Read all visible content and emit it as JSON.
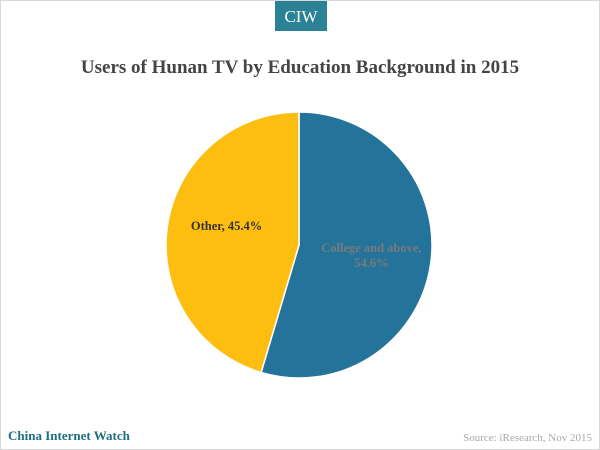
{
  "chart_data": {
    "type": "pie",
    "badge": "CIW",
    "title": "Users of Hunan TV by Education Background in 2015",
    "values": [
      54.6,
      45.4
    ],
    "value_labels": [
      "College and above, 54.6%",
      "Other, 45.4%"
    ],
    "colors": [
      "#23739a",
      "#fdbe10"
    ],
    "footer": "China Internet Watch",
    "source": "Source: iResearch, Nov 2015"
  }
}
